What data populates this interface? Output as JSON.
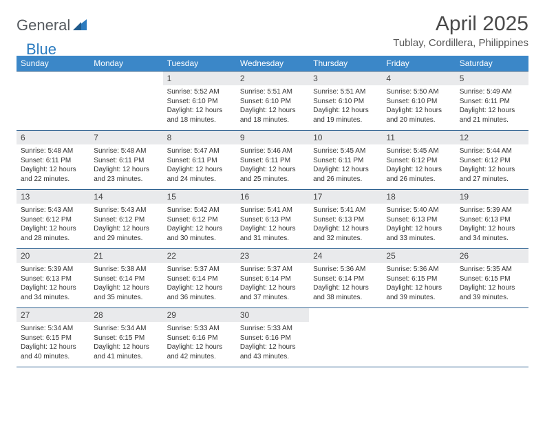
{
  "brand": {
    "part1": "General",
    "part2": "Blue"
  },
  "title": "April 2025",
  "location": "Tublay, Cordillera, Philippines",
  "colors": {
    "header_bg": "#3b87c8",
    "header_text": "#ffffff",
    "row_border": "#2b5f8f",
    "daynum_bg": "#e9eaec",
    "text": "#333333",
    "logo_gray": "#555a5f",
    "logo_blue": "#2b7bbf"
  },
  "weekdays": [
    "Sunday",
    "Monday",
    "Tuesday",
    "Wednesday",
    "Thursday",
    "Friday",
    "Saturday"
  ],
  "weeks": [
    [
      null,
      null,
      {
        "d": "1",
        "sr": "5:52 AM",
        "ss": "6:10 PM",
        "dl": "12 hours and 18 minutes."
      },
      {
        "d": "2",
        "sr": "5:51 AM",
        "ss": "6:10 PM",
        "dl": "12 hours and 18 minutes."
      },
      {
        "d": "3",
        "sr": "5:51 AM",
        "ss": "6:10 PM",
        "dl": "12 hours and 19 minutes."
      },
      {
        "d": "4",
        "sr": "5:50 AM",
        "ss": "6:10 PM",
        "dl": "12 hours and 20 minutes."
      },
      {
        "d": "5",
        "sr": "5:49 AM",
        "ss": "6:11 PM",
        "dl": "12 hours and 21 minutes."
      }
    ],
    [
      {
        "d": "6",
        "sr": "5:48 AM",
        "ss": "6:11 PM",
        "dl": "12 hours and 22 minutes."
      },
      {
        "d": "7",
        "sr": "5:48 AM",
        "ss": "6:11 PM",
        "dl": "12 hours and 23 minutes."
      },
      {
        "d": "8",
        "sr": "5:47 AM",
        "ss": "6:11 PM",
        "dl": "12 hours and 24 minutes."
      },
      {
        "d": "9",
        "sr": "5:46 AM",
        "ss": "6:11 PM",
        "dl": "12 hours and 25 minutes."
      },
      {
        "d": "10",
        "sr": "5:45 AM",
        "ss": "6:11 PM",
        "dl": "12 hours and 26 minutes."
      },
      {
        "d": "11",
        "sr": "5:45 AM",
        "ss": "6:12 PM",
        "dl": "12 hours and 26 minutes."
      },
      {
        "d": "12",
        "sr": "5:44 AM",
        "ss": "6:12 PM",
        "dl": "12 hours and 27 minutes."
      }
    ],
    [
      {
        "d": "13",
        "sr": "5:43 AM",
        "ss": "6:12 PM",
        "dl": "12 hours and 28 minutes."
      },
      {
        "d": "14",
        "sr": "5:43 AM",
        "ss": "6:12 PM",
        "dl": "12 hours and 29 minutes."
      },
      {
        "d": "15",
        "sr": "5:42 AM",
        "ss": "6:12 PM",
        "dl": "12 hours and 30 minutes."
      },
      {
        "d": "16",
        "sr": "5:41 AM",
        "ss": "6:13 PM",
        "dl": "12 hours and 31 minutes."
      },
      {
        "d": "17",
        "sr": "5:41 AM",
        "ss": "6:13 PM",
        "dl": "12 hours and 32 minutes."
      },
      {
        "d": "18",
        "sr": "5:40 AM",
        "ss": "6:13 PM",
        "dl": "12 hours and 33 minutes."
      },
      {
        "d": "19",
        "sr": "5:39 AM",
        "ss": "6:13 PM",
        "dl": "12 hours and 34 minutes."
      }
    ],
    [
      {
        "d": "20",
        "sr": "5:39 AM",
        "ss": "6:13 PM",
        "dl": "12 hours and 34 minutes."
      },
      {
        "d": "21",
        "sr": "5:38 AM",
        "ss": "6:14 PM",
        "dl": "12 hours and 35 minutes."
      },
      {
        "d": "22",
        "sr": "5:37 AM",
        "ss": "6:14 PM",
        "dl": "12 hours and 36 minutes."
      },
      {
        "d": "23",
        "sr": "5:37 AM",
        "ss": "6:14 PM",
        "dl": "12 hours and 37 minutes."
      },
      {
        "d": "24",
        "sr": "5:36 AM",
        "ss": "6:14 PM",
        "dl": "12 hours and 38 minutes."
      },
      {
        "d": "25",
        "sr": "5:36 AM",
        "ss": "6:15 PM",
        "dl": "12 hours and 39 minutes."
      },
      {
        "d": "26",
        "sr": "5:35 AM",
        "ss": "6:15 PM",
        "dl": "12 hours and 39 minutes."
      }
    ],
    [
      {
        "d": "27",
        "sr": "5:34 AM",
        "ss": "6:15 PM",
        "dl": "12 hours and 40 minutes."
      },
      {
        "d": "28",
        "sr": "5:34 AM",
        "ss": "6:15 PM",
        "dl": "12 hours and 41 minutes."
      },
      {
        "d": "29",
        "sr": "5:33 AM",
        "ss": "6:16 PM",
        "dl": "12 hours and 42 minutes."
      },
      {
        "d": "30",
        "sr": "5:33 AM",
        "ss": "6:16 PM",
        "dl": "12 hours and 43 minutes."
      },
      null,
      null,
      null
    ]
  ],
  "labels": {
    "sunrise": "Sunrise:",
    "sunset": "Sunset:",
    "daylight": "Daylight:"
  }
}
